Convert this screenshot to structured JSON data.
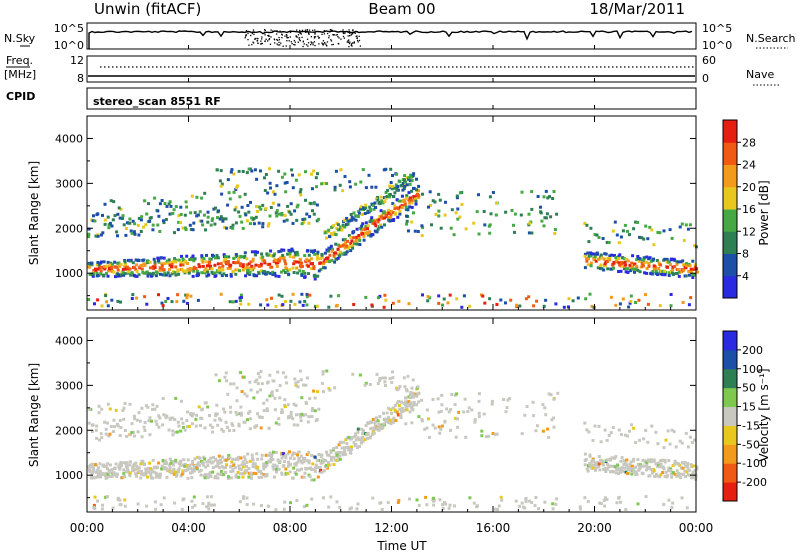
{
  "header": {
    "station": "Unwin (fitACF)",
    "beam": "Beam 00",
    "date": "18/Mar/2011"
  },
  "top_panels": {
    "nsky_label": "N.Sky",
    "nsky_ticks": [
      "10^5",
      "10^0"
    ],
    "nsearch_label": "N.Search",
    "nsearch_ticks": [
      "10^5",
      "10^0"
    ],
    "freq_label_1": "Freq.",
    "freq_label_2": "[MHz]",
    "freq_ticks": [
      "12",
      "8"
    ],
    "nave_label": "Nave",
    "nave_ticks": [
      "60",
      "0"
    ],
    "cpid_label": "CPID",
    "cpid_text": "stereo_scan 8551 RF"
  },
  "colors": {
    "power": [
      "#2a2ae0",
      "#1c4fa8",
      "#2f7f55",
      "#45a843",
      "#e8c81e",
      "#f29a1c",
      "#f15a12",
      "#e61e10"
    ],
    "velocity": [
      "#e61e10",
      "#f15a12",
      "#f29a1c",
      "#e8c81e",
      "#c8c8c0",
      "#7ec850",
      "#2f7f55",
      "#1c4fa8",
      "#2a2ae0"
    ]
  },
  "chart_data": [
    {
      "type": "heatmap",
      "title": "",
      "xlabel": "Time UT",
      "ylabel": "Slant Range [km]",
      "x_ticks": [
        "00:00",
        "04:00",
        "08:00",
        "12:00",
        "16:00",
        "20:00",
        "00:00"
      ],
      "xlim": [
        "00:00",
        "24:00"
      ],
      "ylim": [
        180,
        4500
      ],
      "y_ticks": [
        1000,
        2000,
        3000,
        4000
      ],
      "colorbar": {
        "label": "Power [dB]",
        "ticks": [
          4,
          8,
          12,
          16,
          20,
          24,
          28
        ],
        "range": [
          0,
          30
        ]
      },
      "features": [
        {
          "name": "main band",
          "x": [
            0,
            8,
            9,
            13
          ],
          "y": [
            1050,
            1200,
            1150,
            2750
          ]
        },
        {
          "name": "upper layer",
          "x": [
            0,
            9
          ],
          "y": [
            1950,
            2300
          ]
        },
        {
          "name": "rising arc",
          "x": [
            9.5,
            12.6
          ],
          "y": [
            1800,
            3100
          ]
        },
        {
          "name": "evening band",
          "x": [
            19.5,
            24
          ],
          "y": [
            1250,
            1050
          ]
        },
        {
          "name": "evening upper",
          "x": [
            19.5,
            24
          ],
          "y": [
            1900,
            1800
          ]
        }
      ]
    },
    {
      "type": "heatmap",
      "title": "",
      "xlabel": "Time UT",
      "ylabel": "Slant Range [km]",
      "x_ticks": [
        "00:00",
        "04:00",
        "08:00",
        "12:00",
        "16:00",
        "20:00",
        "00:00"
      ],
      "xlim": [
        "00:00",
        "24:00"
      ],
      "ylim": [
        180,
        4500
      ],
      "y_ticks": [
        1000,
        2000,
        3000,
        4000
      ],
      "colorbar": {
        "label": "Velocity [m s⁻¹]",
        "ticks": [
          -200,
          -100,
          -50,
          -15,
          15,
          50,
          100,
          200
        ]
      },
      "features": [
        {
          "name": "main band (ground scatter)",
          "x": [
            0,
            8,
            9,
            13
          ],
          "y": [
            1050,
            1200,
            1150,
            2750
          ]
        },
        {
          "name": "upper layer",
          "x": [
            0,
            9
          ],
          "y": [
            1950,
            2300
          ]
        },
        {
          "name": "evening band",
          "x": [
            19.5,
            24
          ],
          "y": [
            1250,
            1050
          ]
        },
        {
          "name": "evening upper",
          "x": [
            19.5,
            24
          ],
          "y": [
            1900,
            1800
          ]
        }
      ]
    }
  ]
}
